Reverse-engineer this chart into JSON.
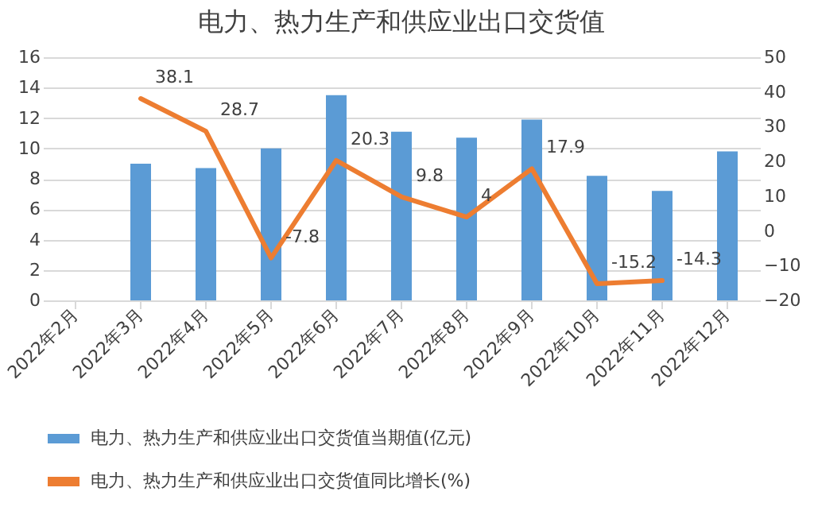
{
  "chart_data": {
    "type": "bar",
    "title": "电力、热力生产和供应业出口交货值",
    "categories": [
      "2022年2月",
      "2022年3月",
      "2022年4月",
      "2022年5月",
      "2022年6月",
      "2022年7月",
      "2022年8月",
      "2022年9月",
      "2022年10月",
      "2022年11月",
      "2022年12月"
    ],
    "series": [
      {
        "name": "电力、热力生产和供应业出口交货值当期值(亿元)",
        "color": "#5b9bd5",
        "values": [
          null,
          9.0,
          8.7,
          10.0,
          13.5,
          11.1,
          10.7,
          11.9,
          8.2,
          7.2,
          9.8
        ]
      },
      {
        "name": "电力、热力生产和供应业出口交货值同比增长(%)",
        "type": "line",
        "axis": "y2",
        "color": "#ed7d31",
        "values": [
          null,
          38.1,
          28.7,
          -7.8,
          20.3,
          9.8,
          4,
          17.9,
          -15.2,
          -14.3,
          null
        ],
        "value_labels": [
          null,
          "38.1",
          "28.7",
          "-7.8",
          "20.3",
          "9.8",
          "4",
          "17.9",
          "-15.2",
          "-14.3",
          null
        ]
      }
    ],
    "ylim": [
      0,
      16
    ],
    "yticks": [
      0,
      2,
      4,
      6,
      8,
      10,
      12,
      14,
      16
    ],
    "y2lim": [
      -20,
      50
    ],
    "y2ticks": [
      -20,
      -10,
      0,
      10,
      20,
      30,
      40,
      50
    ],
    "grid": "y",
    "legend": "bottom"
  }
}
